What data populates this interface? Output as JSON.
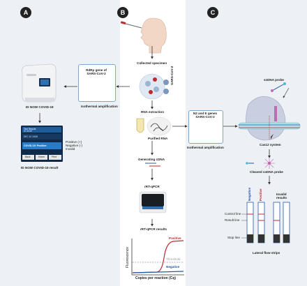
{
  "panels": {
    "a": {
      "badge": "A",
      "device_label": "ID NOW COVID-19",
      "result_label": "ID NOW COVID-19 result",
      "box_label": "RdRp gene of\nSARS-CoV-2",
      "isothermal_label": "Isothermal amplification",
      "screen": {
        "header1": "Test Results",
        "header2": "ID NOW",
        "row1": "DEC 10 18:55",
        "result_text": "COVID-19: Positive",
        "btn_back": "Back",
        "btn_home": "Home",
        "btn_print": "Print"
      },
      "legend": {
        "positive": "Positive (+)",
        "negative": "Negative (-)",
        "invalid": "Invalid"
      }
    },
    "b": {
      "badge": "B",
      "collected_specimen": "Collected specimen",
      "sars_label": "SARS-CoV-2",
      "rna_extraction": "RNA extraction",
      "purified_rna": "Purified RNA",
      "generating_cdna": "Generating cDNA",
      "rrt_qpcr": "rRT-qPCR",
      "rrt_qpcr_results": "rRT-qPCR results",
      "chart": {
        "ylabel": "Fluorescence",
        "xlabel": "Copies per reaction (Cq)",
        "positive": "Positive",
        "threshold": "Threshold",
        "negative": "Negative"
      }
    },
    "c": {
      "badge": "C",
      "box_label": "N2 and E genes\nSARS-CoV-2",
      "isothermal_label": "Isothermal amplification",
      "ssdna_probe": "ssDNA probe",
      "cas12_system": "Cas12 system",
      "cleaved_probe": "Cleaved ssDNA probe",
      "negative": "Negative",
      "positive": "Positive",
      "invalid_results": "Invalid\nresults",
      "control_line": "Control line",
      "result_line": "Result line",
      "stop_line": "Stop line",
      "lateral_flow": "Lateral flow strips"
    }
  },
  "colors": {
    "panel_bg": "#edf1f6",
    "box_border": "#7fa6c9",
    "positive_red": "#c0282e",
    "negative_blue": "#2458a6",
    "threshold_gray": "#9a9a9a",
    "arrow": "#333333",
    "screen_blue": "#1f5c9a"
  },
  "icons": [
    "swab-icon",
    "head-profile-icon",
    "virus-icon",
    "tube-icon",
    "rna-strands-icon",
    "pcr-machine-icon",
    "cas12-complex-icon",
    "scissors-icon",
    "lateral-flow-strip-icon",
    "id-now-device-icon"
  ]
}
